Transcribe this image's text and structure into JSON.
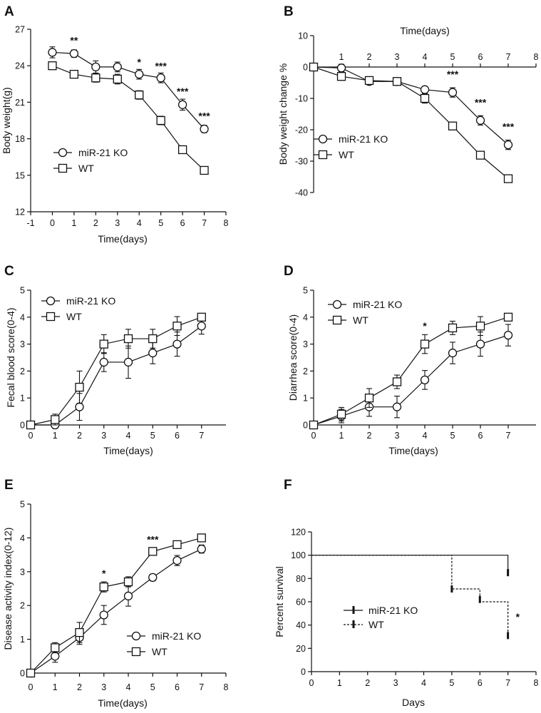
{
  "chart_data": [
    {
      "panel": "A",
      "type": "line",
      "xlabel": "Time(days)",
      "ylabel": "Body weight(g)",
      "xlim": [
        -1,
        8
      ],
      "ylim": [
        12,
        27
      ],
      "xticks": [
        "-1",
        "0",
        "1",
        "2",
        "3",
        "4",
        "5",
        "6",
        "7",
        "8"
      ],
      "yticks": [
        "12",
        "15",
        "18",
        "21",
        "24",
        "27"
      ],
      "legend": [
        "miR-21 KO",
        "WT"
      ],
      "series": [
        {
          "name": "miR-21 KO",
          "marker": "circle",
          "x": [
            0,
            1,
            2,
            3,
            4,
            5,
            6,
            7
          ],
          "y": [
            25.1,
            25.0,
            23.9,
            23.9,
            23.3,
            23.0,
            20.8,
            18.8
          ],
          "err": [
            0.45,
            0.3,
            0.5,
            0.4,
            0.4,
            0.4,
            0.45,
            0.3
          ]
        },
        {
          "name": "WT",
          "marker": "square",
          "x": [
            0,
            1,
            2,
            3,
            4,
            5,
            6,
            7
          ],
          "y": [
            24.0,
            23.3,
            23.0,
            22.9,
            21.6,
            19.5,
            17.1,
            15.4
          ],
          "err": [
            0.1,
            0.15,
            0.35,
            0.4,
            0.35,
            0.35,
            0.1,
            0.1
          ]
        }
      ],
      "annotations": [
        {
          "x": 1,
          "y": 25.8,
          "text": "**"
        },
        {
          "x": 4,
          "y": 24.0,
          "text": "*"
        },
        {
          "x": 5,
          "y": 23.7,
          "text": "***"
        },
        {
          "x": 6,
          "y": 21.6,
          "text": "***"
        },
        {
          "x": 7,
          "y": 19.6,
          "text": "***"
        }
      ]
    },
    {
      "panel": "B",
      "type": "line",
      "xlabel": "Time(days)",
      "ylabel": "Body weight change %",
      "xlim": [
        0,
        8
      ],
      "ylim": [
        -40,
        10
      ],
      "xticks": [
        "1",
        "2",
        "3",
        "4",
        "5",
        "6",
        "7",
        "8"
      ],
      "yticks": [
        "-40",
        "-30",
        "-20",
        "-10",
        "0",
        "10"
      ],
      "legend": [
        "miR-21 KO",
        "WT"
      ],
      "series": [
        {
          "name": "miR-21 KO",
          "marker": "circle",
          "x": [
            0,
            1,
            2,
            3,
            4,
            5,
            6,
            7
          ],
          "y": [
            0,
            -0.3,
            -4.6,
            -4.6,
            -7.2,
            -8.1,
            -17.0,
            -24.8
          ],
          "err": [
            0,
            1.2,
            1.0,
            1.0,
            1.0,
            1.5,
            1.5,
            1.5
          ]
        },
        {
          "name": "WT",
          "marker": "square",
          "x": [
            0,
            1,
            2,
            3,
            4,
            5,
            6,
            7
          ],
          "y": [
            0,
            -3.0,
            -4.3,
            -4.6,
            -10.0,
            -18.8,
            -28.1,
            -35.6
          ],
          "err": [
            0,
            0.5,
            1.0,
            1.0,
            1.5,
            1.2,
            1.0,
            0.8
          ]
        }
      ],
      "annotations": [
        {
          "x": 5,
          "y": -3.4,
          "text": "***"
        },
        {
          "x": 6,
          "y": -12.4,
          "text": "***"
        },
        {
          "x": 7,
          "y": -20.1,
          "text": "***"
        }
      ]
    },
    {
      "panel": "C",
      "type": "line",
      "xlabel": "Time(days)",
      "ylabel": "Fecal blood score(0-4)",
      "xlim": [
        0,
        8
      ],
      "ylim": [
        0,
        5
      ],
      "xticks": [
        "0",
        "1",
        "2",
        "3",
        "4",
        "5",
        "6",
        "7"
      ],
      "yticks": [
        "0",
        "1",
        "2",
        "3",
        "4",
        "5"
      ],
      "legend": [
        "miR-21 KO",
        "WT"
      ],
      "series": [
        {
          "name": "miR-21 KO",
          "marker": "circle",
          "x": [
            0,
            1,
            2,
            3,
            4,
            5,
            6,
            7
          ],
          "y": [
            0,
            0.0,
            0.67,
            2.33,
            2.33,
            2.67,
            3.0,
            3.67
          ],
          "err": [
            0,
            0.12,
            0.5,
            0.35,
            0.6,
            0.4,
            0.45,
            0.3
          ]
        },
        {
          "name": "WT",
          "marker": "square",
          "x": [
            0,
            1,
            2,
            3,
            4,
            5,
            6,
            7
          ],
          "y": [
            0,
            0.2,
            1.4,
            3.0,
            3.2,
            3.2,
            3.67,
            4.0
          ],
          "err": [
            0,
            0.2,
            0.6,
            0.35,
            0.35,
            0.35,
            0.35,
            0.12
          ]
        }
      ],
      "annotations": []
    },
    {
      "panel": "D",
      "type": "line",
      "xlabel": "Time(days)",
      "ylabel": "Diarrhea score(0-4)",
      "xlim": [
        0,
        8
      ],
      "ylim": [
        0,
        5
      ],
      "xticks": [
        "0",
        "1",
        "2",
        "3",
        "4",
        "5",
        "6",
        "7"
      ],
      "yticks": [
        "0",
        "1",
        "2",
        "3",
        "4",
        "5"
      ],
      "legend": [
        "miR-21 KO",
        "WT"
      ],
      "series": [
        {
          "name": "miR-21 KO",
          "marker": "circle",
          "x": [
            0,
            1,
            2,
            3,
            4,
            5,
            6,
            7
          ],
          "y": [
            0,
            0.33,
            0.67,
            0.67,
            1.67,
            2.67,
            3.0,
            3.33
          ],
          "err": [
            0,
            0.25,
            0.35,
            0.4,
            0.35,
            0.4,
            0.45,
            0.4
          ]
        },
        {
          "name": "WT",
          "marker": "square",
          "x": [
            0,
            1,
            2,
            3,
            4,
            5,
            6,
            7
          ],
          "y": [
            0,
            0.4,
            1.0,
            1.6,
            3.0,
            3.6,
            3.67,
            4.0
          ],
          "err": [
            0,
            0.25,
            0.35,
            0.25,
            0.35,
            0.25,
            0.35,
            0.12
          ]
        }
      ],
      "annotations": [
        {
          "x": 4,
          "y": 3.55,
          "text": "*"
        }
      ]
    },
    {
      "panel": "E",
      "type": "line",
      "xlabel": "Time(days)",
      "ylabel": "Disease activity index(0-12)",
      "xlim": [
        0,
        8
      ],
      "ylim": [
        0,
        5
      ],
      "xticks": [
        "0",
        "1",
        "2",
        "3",
        "4",
        "5",
        "6",
        "7",
        "8"
      ],
      "yticks": [
        "0",
        "1",
        "2",
        "3",
        "4",
        "5"
      ],
      "legend": [
        "miR-21 KO",
        "WT"
      ],
      "series": [
        {
          "name": "miR-21 KO",
          "marker": "circle",
          "x": [
            0,
            1,
            2,
            3,
            4,
            5,
            6,
            7
          ],
          "y": [
            0,
            0.5,
            1.05,
            1.72,
            2.28,
            2.83,
            3.33,
            3.67
          ],
          "err": [
            0,
            0.18,
            0.2,
            0.28,
            0.3,
            0.1,
            0.15,
            0.12
          ]
        },
        {
          "name": "WT",
          "marker": "square",
          "x": [
            0,
            1,
            2,
            3,
            4,
            5,
            6,
            7
          ],
          "y": [
            0,
            0.75,
            1.2,
            2.55,
            2.7,
            3.6,
            3.8,
            4.0
          ],
          "err": [
            0,
            0.15,
            0.3,
            0.15,
            0.15,
            0.08,
            0.1,
            0.08
          ]
        }
      ],
      "annotations": [
        {
          "x": 3,
          "y": 2.85,
          "text": "*"
        },
        {
          "x": 5,
          "y": 3.85,
          "text": "***"
        }
      ]
    },
    {
      "panel": "F",
      "type": "survival",
      "xlabel": "Days",
      "ylabel": "Percent survival",
      "xlim": [
        0,
        8
      ],
      "ylim": [
        0,
        120
      ],
      "xticks": [
        "0",
        "1",
        "2",
        "3",
        "4",
        "5",
        "6",
        "7",
        "8"
      ],
      "yticks": [
        "0",
        "20",
        "40",
        "60",
        "80",
        "100",
        "120"
      ],
      "legend": [
        "miR-21 KO",
        "WT"
      ],
      "series": [
        {
          "name": "miR-21 KO",
          "line": "solid",
          "x": [
            0,
            7,
            7
          ],
          "y": [
            100,
            100,
            85
          ]
        },
        {
          "name": "WT",
          "line": "dashed",
          "x": [
            0,
            5,
            5,
            6,
            6,
            7,
            7
          ],
          "y": [
            100,
            100,
            71,
            71,
            60,
            60,
            31
          ]
        }
      ],
      "censor_marks": [
        {
          "series": "miR-21 KO",
          "x": 7,
          "y": 85
        },
        {
          "series": "WT",
          "x": 5,
          "y": 71
        },
        {
          "series": "WT",
          "x": 6,
          "y": 62
        },
        {
          "series": "WT",
          "x": 7,
          "y": 31
        }
      ],
      "annotations": [
        {
          "x": 7.35,
          "y": 44,
          "text": "*"
        }
      ]
    }
  ]
}
